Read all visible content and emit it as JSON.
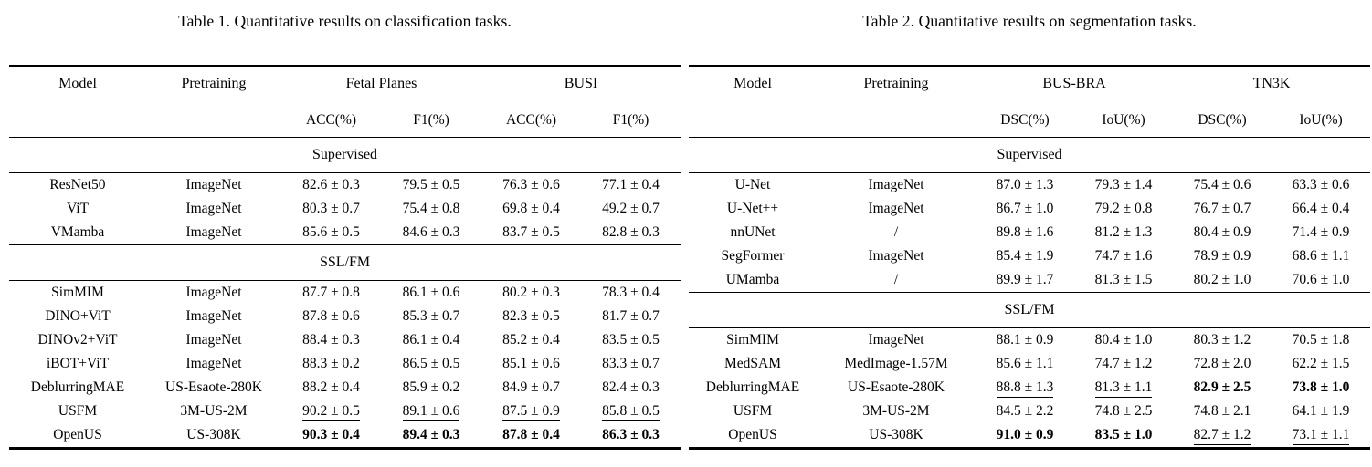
{
  "tables": [
    {
      "id": "classification",
      "caption": "Table 1. Quantitative results on classification tasks.",
      "col_headers": {
        "model": "Model",
        "pretraining": "Pretraining"
      },
      "groups": [
        {
          "label": "Fetal Planes",
          "metrics": [
            "ACC(%)",
            "F1(%)"
          ]
        },
        {
          "label": "BUSI",
          "metrics": [
            "ACC(%)",
            "F1(%)"
          ]
        }
      ],
      "sections": [
        {
          "label": "Supervised",
          "rows": [
            {
              "model": "ResNet50",
              "pretraining": "ImageNet",
              "values": [
                "82.6 ± 0.3",
                "79.5 ± 0.5",
                "76.3 ± 0.6",
                "77.1 ± 0.4"
              ],
              "styles": [
                "",
                "",
                "",
                ""
              ]
            },
            {
              "model": "ViT",
              "pretraining": "ImageNet",
              "values": [
                "80.3 ± 0.7",
                "75.4 ± 0.8",
                "69.8 ± 0.4",
                "49.2 ± 0.7"
              ],
              "styles": [
                "",
                "",
                "",
                ""
              ]
            },
            {
              "model": "VMamba",
              "pretraining": "ImageNet",
              "values": [
                "85.6 ± 0.5",
                "84.6 ± 0.3",
                "83.7 ± 0.5",
                "82.8 ± 0.3"
              ],
              "styles": [
                "",
                "",
                "",
                ""
              ]
            }
          ]
        },
        {
          "label": "SSL/FM",
          "rows": [
            {
              "model": "SimMIM",
              "pretraining": "ImageNet",
              "values": [
                "87.7 ± 0.8",
                "86.1 ± 0.6",
                "80.2 ± 0.3",
                "78.3 ± 0.4"
              ],
              "styles": [
                "",
                "",
                "",
                ""
              ]
            },
            {
              "model": "DINO+ViT",
              "pretraining": "ImageNet",
              "values": [
                "87.8 ± 0.6",
                "85.3 ± 0.7",
                "82.3 ± 0.5",
                "81.7 ± 0.7"
              ],
              "styles": [
                "",
                "",
                "",
                ""
              ]
            },
            {
              "model": "DINOv2+ViT",
              "pretraining": "ImageNet",
              "values": [
                "88.4 ± 0.3",
                "86.1 ± 0.4",
                "85.2 ± 0.4",
                "83.5 ± 0.5"
              ],
              "styles": [
                "",
                "",
                "",
                ""
              ]
            },
            {
              "model": "iBOT+ViT",
              "pretraining": "ImageNet",
              "values": [
                "88.3 ± 0.2",
                "86.5 ± 0.5",
                "85.1 ± 0.6",
                "83.3 ± 0.7"
              ],
              "styles": [
                "",
                "",
                "",
                ""
              ]
            },
            {
              "model": "DeblurringMAE",
              "pretraining": "US-Esaote-280K",
              "values": [
                "88.2 ± 0.4",
                "85.9 ± 0.2",
                "84.9 ± 0.7",
                "82.4 ± 0.3"
              ],
              "styles": [
                "",
                "",
                "",
                ""
              ]
            },
            {
              "model": "USFM",
              "pretraining": "3M-US-2M",
              "values": [
                "90.2 ± 0.5",
                "89.1 ± 0.6",
                "87.5 ± 0.9",
                "85.8 ± 0.5"
              ],
              "styles": [
                "u",
                "u",
                "u",
                "u"
              ]
            },
            {
              "model": "OpenUS",
              "pretraining": "US-308K",
              "values": [
                "90.3 ± 0.4",
                "89.4 ± 0.3",
                "87.8 ± 0.4",
                "86.3 ± 0.3"
              ],
              "styles": [
                "b",
                "b",
                "b",
                "b"
              ]
            }
          ]
        }
      ]
    },
    {
      "id": "segmentation",
      "caption": "Table 2. Quantitative results on segmentation tasks.",
      "col_headers": {
        "model": "Model",
        "pretraining": "Pretraining"
      },
      "groups": [
        {
          "label": "BUS-BRA",
          "metrics": [
            "DSC(%)",
            "IoU(%)"
          ]
        },
        {
          "label": "TN3K",
          "metrics": [
            "DSC(%)",
            "IoU(%)"
          ]
        }
      ],
      "sections": [
        {
          "label": "Supervised",
          "rows": [
            {
              "model": "U-Net",
              "pretraining": "ImageNet",
              "values": [
                "87.0 ± 1.3",
                "79.3 ± 1.4",
                "75.4 ± 0.6",
                "63.3 ± 0.6"
              ],
              "styles": [
                "",
                "",
                "",
                ""
              ]
            },
            {
              "model": "U-Net++",
              "pretraining": "ImageNet",
              "values": [
                "86.7 ± 1.0",
                "79.2 ± 0.8",
                "76.7 ± 0.7",
                "66.4 ± 0.4"
              ],
              "styles": [
                "",
                "",
                "",
                ""
              ]
            },
            {
              "model": "nnUNet",
              "pretraining": "/",
              "values": [
                "89.8 ± 1.6",
                "81.2 ± 1.3",
                "80.4 ± 0.9",
                "71.4 ± 0.9"
              ],
              "styles": [
                "",
                "",
                "",
                ""
              ]
            },
            {
              "model": "SegFormer",
              "pretraining": "ImageNet",
              "values": [
                "85.4 ± 1.9",
                "74.7 ± 1.6",
                "78.9 ± 0.9",
                "68.6 ± 1.1"
              ],
              "styles": [
                "",
                "",
                "",
                ""
              ]
            },
            {
              "model": "UMamba",
              "pretraining": "/",
              "values": [
                "89.9 ± 1.7",
                "81.3 ± 1.5",
                "80.2 ± 1.0",
                "70.6 ± 1.0"
              ],
              "styles": [
                "",
                "",
                "",
                ""
              ]
            }
          ]
        },
        {
          "label": "SSL/FM",
          "rows": [
            {
              "model": "SimMIM",
              "pretraining": "ImageNet",
              "values": [
                "88.1 ± 0.9",
                "80.4 ± 1.0",
                "80.3 ± 1.2",
                "70.5 ± 1.8"
              ],
              "styles": [
                "",
                "",
                "",
                ""
              ]
            },
            {
              "model": "MedSAM",
              "pretraining": "MedImage-1.57M",
              "values": [
                "85.6 ± 1.1",
                "74.7 ± 1.2",
                "72.8 ± 2.0",
                "62.2 ± 1.5"
              ],
              "styles": [
                "",
                "",
                "",
                ""
              ]
            },
            {
              "model": "DeblurringMAE",
              "pretraining": "US-Esaote-280K",
              "values": [
                "88.8 ± 1.3",
                "81.3 ± 1.1",
                "82.9 ± 2.5",
                "73.8 ± 1.0"
              ],
              "styles": [
                "u",
                "u",
                "b",
                "b"
              ]
            },
            {
              "model": "USFM",
              "pretraining": "3M-US-2M",
              "values": [
                "84.5 ± 2.2",
                "74.8 ± 2.5",
                "74.8 ± 2.1",
                "64.1 ± 1.9"
              ],
              "styles": [
                "",
                "",
                "",
                ""
              ]
            },
            {
              "model": "OpenUS",
              "pretraining": "US-308K",
              "values": [
                "91.0 ± 0.9",
                "83.5 ± 1.0",
                "82.7 ± 1.2",
                "73.1 ± 1.1"
              ],
              "styles": [
                "b",
                "b",
                "u",
                "u"
              ]
            }
          ]
        }
      ]
    }
  ]
}
